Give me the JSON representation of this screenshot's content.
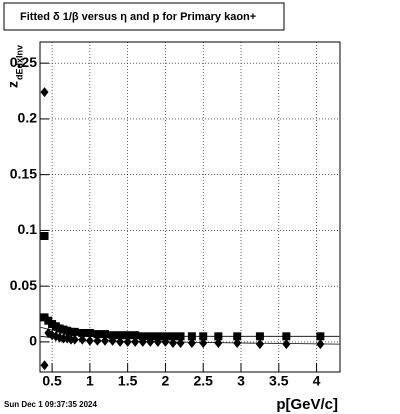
{
  "chart_data": {
    "type": "scatter",
    "title": "Fitted δ 1/β versus η and p for Primary kaon+",
    "x_label": "p[GeV/c]",
    "y_label": "z",
    "y_label_sub": "dEdxInv",
    "timestamp": "Sun Dec  1 09:37:35 2024",
    "xlim": [
      0.34,
      4.31
    ],
    "ylim": [
      -0.027,
      0.269
    ],
    "xticks": [
      0.5,
      1,
      1.5,
      2,
      2.5,
      3,
      3.5,
      4
    ],
    "yticks": [
      0,
      0.05,
      0.1,
      0.15,
      0.2,
      0.25
    ],
    "grid": true,
    "series": [
      {
        "marker": "square",
        "color": "#000000",
        "x": [
          0.4,
          0.45,
          0.5,
          0.55,
          0.6,
          0.65,
          0.7,
          0.75,
          0.8,
          0.9,
          1.0,
          1.1,
          1.2,
          1.3,
          1.4,
          1.5,
          1.6,
          1.7,
          1.8,
          1.9,
          2.0,
          2.1,
          2.2,
          2.35,
          2.5,
          2.7,
          2.95,
          3.25,
          3.6,
          4.05
        ],
        "values": [
          0.022,
          0.019,
          0.016,
          0.014,
          0.012,
          0.011,
          0.01,
          0.009,
          0.009,
          0.008,
          0.008,
          0.007,
          0.007,
          0.006,
          0.006,
          0.006,
          0.006,
          0.005,
          0.005,
          0.005,
          0.005,
          0.005,
          0.005,
          0.005,
          0.005,
          0.005,
          0.005,
          0.005,
          0.005,
          0.005
        ]
      },
      {
        "marker": "diamond",
        "color": "#000000",
        "x": [
          0.4,
          0.45,
          0.5,
          0.55,
          0.6,
          0.65,
          0.7,
          0.75,
          0.8,
          0.9,
          1.0,
          1.1,
          1.2,
          1.3,
          1.4,
          1.5,
          1.6,
          1.7,
          1.8,
          1.9,
          2.0,
          2.1,
          2.2,
          2.35,
          2.5,
          2.7,
          2.95,
          3.25,
          3.6,
          4.05
        ],
        "values": [
          -0.021,
          0.008,
          0.006,
          0.005,
          0.004,
          0.003,
          0.003,
          0.002,
          0.002,
          0.002,
          0.001,
          0.001,
          0.001,
          0.001,
          0.0,
          0.0,
          0.0,
          0.0,
          0.0,
          0.0,
          0.0,
          -0.001,
          -0.001,
          -0.001,
          -0.001,
          -0.001,
          -0.001,
          -0.002,
          -0.002,
          -0.002
        ]
      },
      {
        "marker": "square",
        "color": "#000000",
        "x": [
          0.4
        ],
        "values": [
          0.095
        ]
      },
      {
        "marker": "diamond",
        "color": "#000000",
        "x": [
          0.4
        ],
        "values": [
          0.224
        ]
      },
      {
        "marker": "line",
        "color": "#000000",
        "x": [
          0.35,
          0.6,
          1,
          2,
          3,
          4.3
        ],
        "values": [
          0.013,
          0.009,
          0.006,
          0.005,
          0.005,
          0.005
        ]
      },
      {
        "marker": "line",
        "color": "#000000",
        "x": [
          0.35,
          0.6,
          1,
          2,
          3,
          4.3
        ],
        "values": [
          0.005,
          0.003,
          0.001,
          0.0,
          -0.001,
          -0.002
        ]
      }
    ]
  }
}
